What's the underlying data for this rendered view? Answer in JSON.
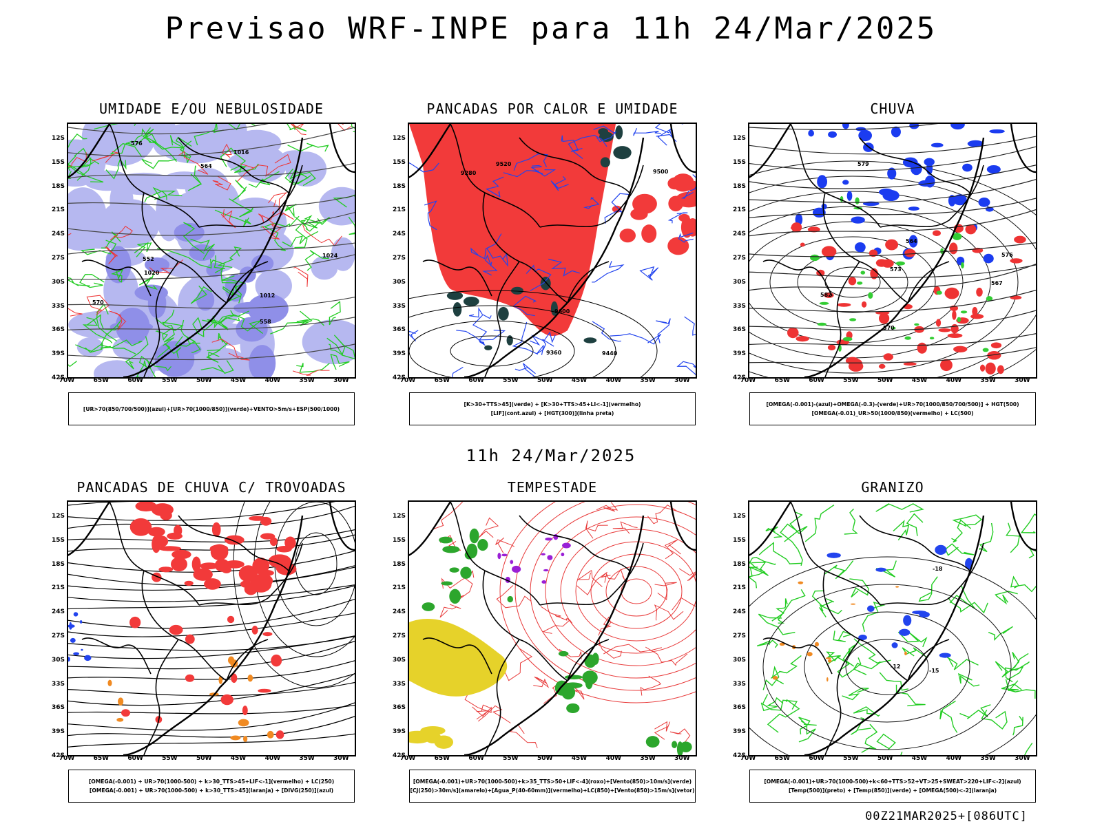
{
  "title": "Previsao WRF-INPE  para 11h 24/Mar/2025",
  "mid_title": "11h 24/Mar/2025",
  "footer": "00Z21MAR2025+[086UTC]",
  "axes": {
    "lat_labels": [
      "12S",
      "15S",
      "18S",
      "21S",
      "24S",
      "27S",
      "30S",
      "33S",
      "36S",
      "39S",
      "42S"
    ],
    "lon_labels": [
      "70W",
      "65W",
      "60W",
      "55W",
      "50W",
      "45W",
      "40W",
      "35W",
      "30W"
    ]
  },
  "panels": [
    {
      "id": "umidade",
      "title": "UMIDADE E/OU NEBULOSIDADE",
      "legend": [
        "[UR>70(850/700/500)](azul)+[UR>70(1000/850)](verde)+VENTO>5m/s+ESP(500/1000)"
      ],
      "contour_labels": [
        "1012",
        "1016",
        "1020",
        "1024",
        "576",
        "570",
        "564",
        "558",
        "552"
      ]
    },
    {
      "id": "pancadas-calor",
      "title": "PANCADAS POR CALOR E UMIDADE",
      "legend": [
        "[K>30+TTS>45](verde)  +  [K>30+TTS>45+LI<-1](vermelho)",
        "[LIF](cont.azul)  +  [HGT(300)](linha preta)"
      ],
      "contour_labels": [
        "9600",
        "9520",
        "9440",
        "9360",
        "9280",
        "9500"
      ]
    },
    {
      "id": "chuva",
      "title": "CHUVA",
      "legend": [
        "[OMEGA(-0.001)-(azul)+OMEGA(-0.3)-(verde)+UR>70(1000/850/700/500)]  +  HGT(500)",
        "[OMEGA(-0.01)_UR>50(1000/850)(vermelho)  +  LC(500)"
      ],
      "contour_labels": [
        "582",
        "579",
        "576",
        "573",
        "570",
        "567",
        "564"
      ]
    },
    {
      "id": "pancadas-trovoadas",
      "title": "PANCADAS DE CHUVA C/ TROVOADAS",
      "legend": [
        "[OMEGA(-0.001)  +  UR>70(1000-500)  +  k>30_TTS>45+LIF<-1](vermelho)  +  LC(250)",
        "[OMEGA(-0.001)  +  UR>70(1000-500)  +  k>30_TTS>45](laranja)  +  [DIVG(250)](azul)"
      ],
      "contour_labels": []
    },
    {
      "id": "tempestade",
      "title": "TEMPESTADE",
      "legend": [
        "[OMEGA(-0.001)+UR>70(1000-500)+k>35_TTS>50+LIF<-4](roxo)+[Vento(850)>10m/s](verde)",
        "[CJ(250)>30m/s](amarelo)+[Agua_P(40-60mm)](vermelho)+LC(850)+[Vento(850)>15m/s](vetor)"
      ],
      "contour_labels": []
    },
    {
      "id": "granizo",
      "title": "GRANIZO",
      "legend": [
        "[OMEGA(-0.001)+UR>70(1000-500)+k<60+TTS>52+VT>25+SWEAT>220+LIF<-2](azul)",
        "[Temp(500)](preto)  +  [Temp(850)](verde)  +  [OMEGA(500)<-2](laranja)"
      ],
      "contour_labels": [
        "-12",
        "-15",
        "-18"
      ]
    }
  ]
}
